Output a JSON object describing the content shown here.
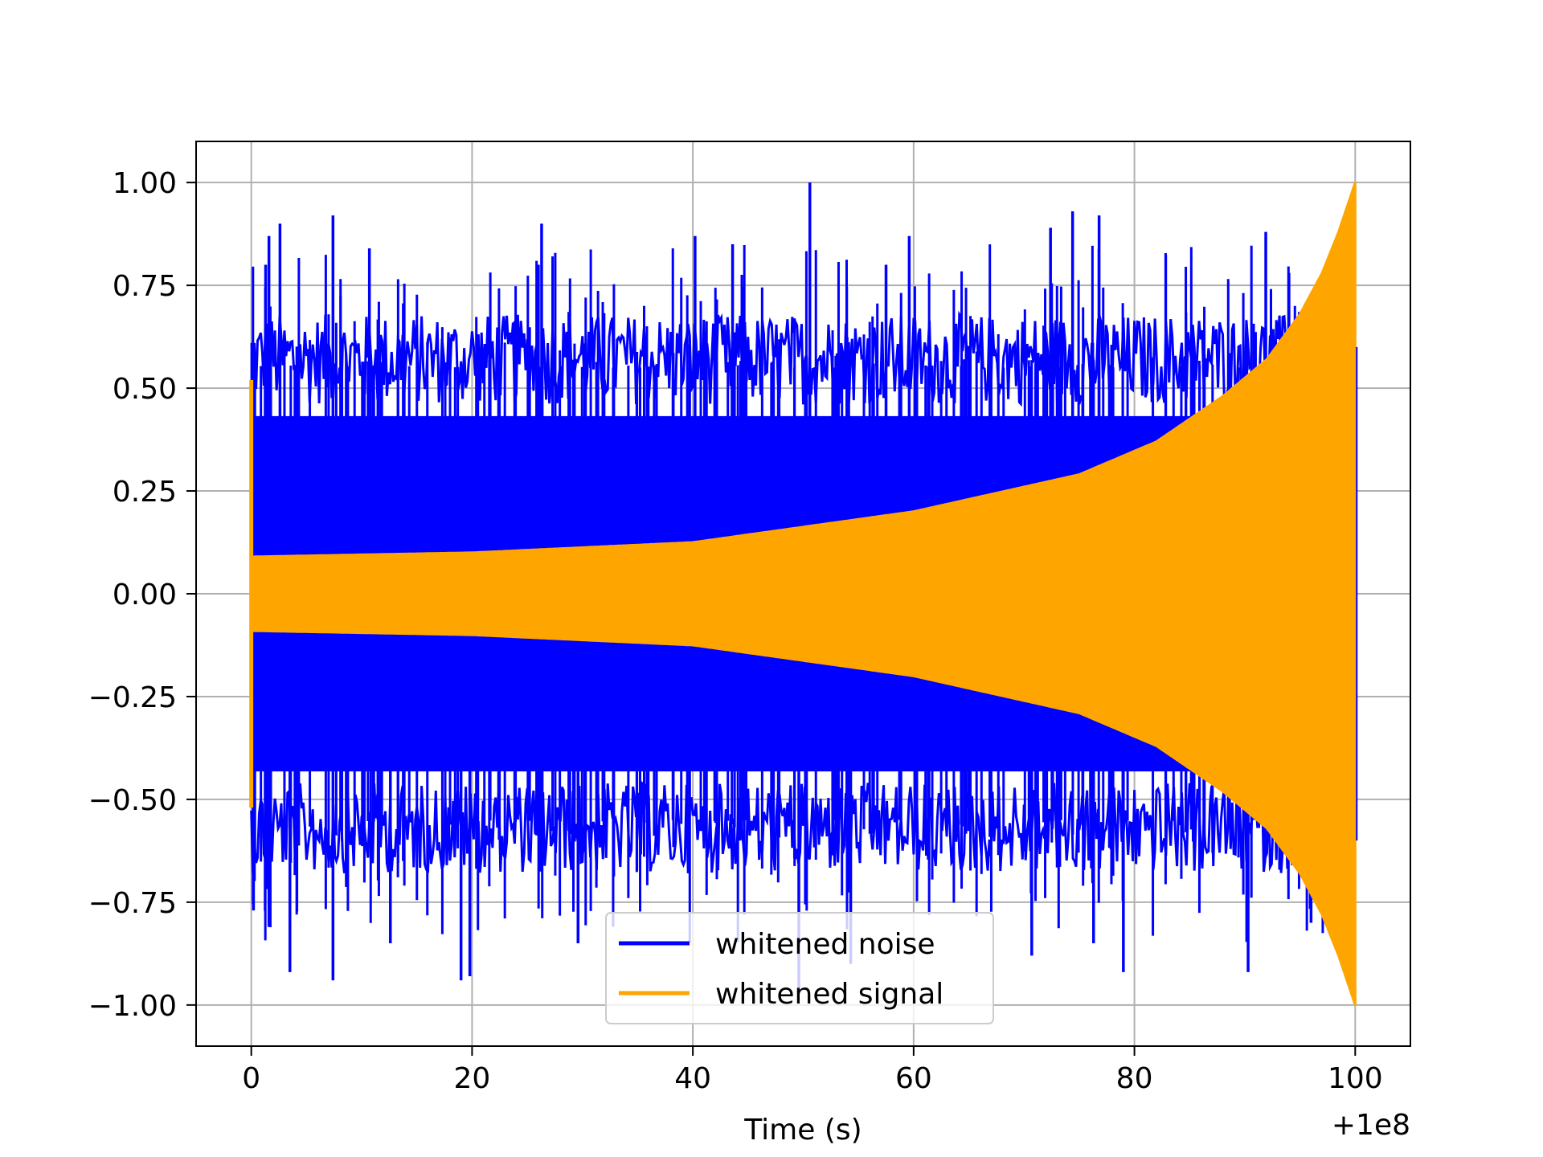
{
  "chart_data": {
    "type": "line",
    "title": "",
    "xlabel": "Time (s)",
    "ylabel": "",
    "x_offset_label": "+1e8",
    "xlim": [
      -5,
      105
    ],
    "ylim": [
      -1.1,
      1.1
    ],
    "grid": true,
    "legend_position": "lower center",
    "x_ticks": [
      0,
      20,
      40,
      60,
      80,
      100
    ],
    "x_tick_labels": [
      "0",
      "20",
      "40",
      "60",
      "80",
      "100"
    ],
    "y_ticks": [
      1.0,
      0.75,
      0.5,
      0.25,
      0.0,
      -0.25,
      -0.5,
      -0.75,
      -1.0
    ],
    "y_tick_labels": [
      "1.00",
      "0.75",
      "0.50",
      "0.25",
      "0.00",
      "−0.25",
      "−0.50",
      "−0.75",
      "−1.00"
    ],
    "series": [
      {
        "name": "whitened noise",
        "color": "#0000ff",
        "x_range": [
          0,
          100
        ],
        "typical_band": [
          -0.6,
          0.6
        ],
        "peaks_high": [
          [
            0.05,
            0.61
          ],
          [
            1.3,
            0.8
          ],
          [
            1.6,
            0.87
          ],
          [
            2.6,
            0.9
          ],
          [
            7.4,
            0.92
          ],
          [
            10.7,
            0.84
          ],
          [
            26.3,
            0.9
          ],
          [
            40.2,
            0.87
          ],
          [
            43.6,
            0.85
          ],
          [
            50.6,
            1.0
          ],
          [
            57.5,
            0.8
          ],
          [
            59.6,
            0.87
          ],
          [
            72.4,
            0.89
          ],
          [
            74.4,
            0.93
          ],
          [
            76.8,
            0.92
          ],
          [
            91.9,
            0.88
          ],
          [
            94.0,
            0.78
          ]
        ],
        "peaks_low": [
          [
            0.2,
            -0.77
          ],
          [
            1.6,
            -0.81
          ],
          [
            3.5,
            -0.92
          ],
          [
            7.4,
            -0.94
          ],
          [
            12.6,
            -0.85
          ],
          [
            19.0,
            -0.94
          ],
          [
            19.8,
            -0.93
          ],
          [
            29.6,
            -0.85
          ],
          [
            49.6,
            -0.97
          ],
          [
            54.3,
            -0.9
          ],
          [
            70.7,
            -0.88
          ],
          [
            76.3,
            -0.85
          ],
          [
            79.0,
            -0.92
          ],
          [
            90.3,
            -0.92
          ],
          [
            96.0,
            -0.8
          ]
        ]
      },
      {
        "name": "whitened signal",
        "color": "#ffa500",
        "x_range": [
          0,
          100
        ],
        "envelope": [
          [
            0,
            0.09
          ],
          [
            20,
            0.1
          ],
          [
            40,
            0.125
          ],
          [
            60,
            0.2
          ],
          [
            75,
            0.29
          ],
          [
            82,
            0.37
          ],
          [
            88,
            0.48
          ],
          [
            92,
            0.57
          ],
          [
            95,
            0.68
          ],
          [
            97,
            0.78
          ],
          [
            98.5,
            0.88
          ],
          [
            100,
            1.0
          ]
        ],
        "initial_transient": [
          [
            0,
            0.52
          ],
          [
            0.15,
            -0.52
          ]
        ]
      }
    ]
  }
}
